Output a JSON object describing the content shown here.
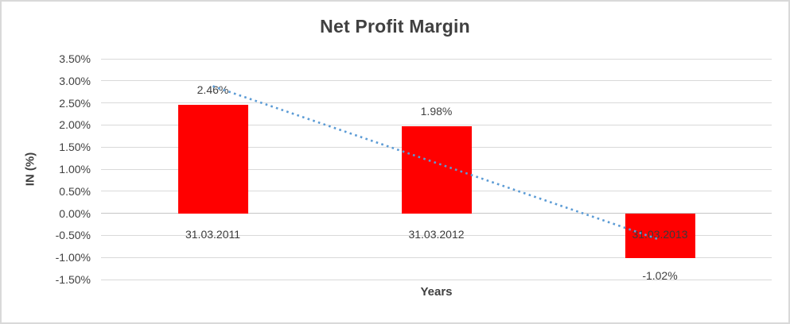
{
  "chart_data": {
    "type": "bar",
    "title": "Net Profit Margin",
    "xlabel": "Years",
    "ylabel": "IN (%)",
    "categories": [
      "31.03.2011",
      "31.03.2012",
      "31.03.2013"
    ],
    "values": [
      2.46,
      1.98,
      -1.02
    ],
    "value_labels": [
      "2.46%",
      "1.98%",
      "-1.02%"
    ],
    "ylim": [
      -1.5,
      3.5
    ],
    "ytick_step": 0.5,
    "ytick_labels": [
      "3.50%",
      "3.00%",
      "2.50%",
      "2.00%",
      "1.50%",
      "1.00%",
      "0.50%",
      "0.00%",
      "-0.50%",
      "-1.00%",
      "-1.50%"
    ],
    "grid": true,
    "legend": "none",
    "trendline": {
      "type": "linear",
      "style": "dotted",
      "start_value": 2.88,
      "end_value": -0.6
    },
    "colors": {
      "bar": "#ff0000",
      "trendline": "#5b9bd5",
      "gridline": "#d9d9d9",
      "text": "#404040"
    }
  }
}
